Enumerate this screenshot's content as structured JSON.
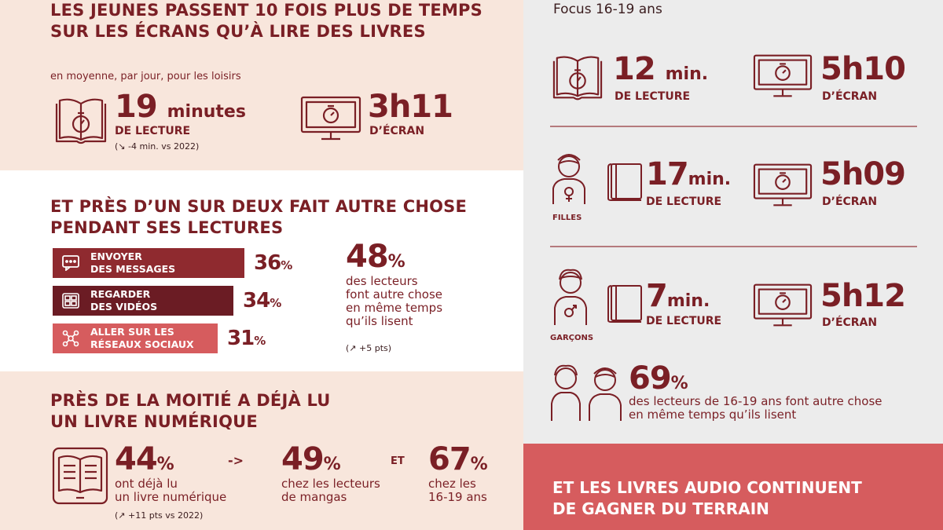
{
  "panel1": {
    "title_line1": "LES JEUNES PASSENT 10 FOIS PLUS DE TEMPS",
    "title_line2": "SUR LES ÉCRANS QU’À LIRE DES LIVRES",
    "subtitle": "en moyenne, par jour, pour les loisirs",
    "reading": {
      "value": "19",
      "unit": "minutes",
      "label": "DE LECTURE",
      "note_arrow": "↘",
      "note": "-4 min. vs 2022"
    },
    "screen": {
      "value": "3h11",
      "label": "D’ÉCRAN"
    }
  },
  "panel2": {
    "title_line1": "ET PRÈS D’UN SUR DEUX FAIT AUTRE CHOSE",
    "title_line2": "PENDANT SES LECTURES",
    "bars": [
      {
        "line1": "ENVOYER",
        "line2": "DES MESSAGES",
        "value": 36,
        "value_text": "36",
        "pct": "%",
        "color": "#8f2a2f",
        "icon": "chat-icon"
      },
      {
        "line1": "REGARDER",
        "line2": "DES VIDÉOS",
        "value": 34,
        "value_text": "34",
        "pct": "%",
        "color": "#6b1c24",
        "icon": "video-icon"
      },
      {
        "line1": "ALLER SUR LES",
        "line2": "RÉSEAUX SOCIAUX",
        "value": 31,
        "value_text": "31",
        "pct": "%",
        "color": "#d65c5e",
        "icon": "social-network-icon"
      }
    ],
    "stat": {
      "value": "48",
      "pct": "%",
      "line1": "des lecteurs",
      "line2": "font autre chose",
      "line3": "en même temps",
      "line4": "qu’ils lisent",
      "note_arrow": "↗",
      "note": "+5 pts"
    }
  },
  "panel3": {
    "title_line1": "PRÈS DE LA MOITIÉ A DÉJÀ LU",
    "title_line2": "UN LIVRE NUMÉRIQUE",
    "stat1": {
      "value": "44",
      "pct": "%",
      "line1": "ont déjà lu",
      "line2": "un livre numérique",
      "note_arrow": "↗",
      "note": "+11 pts vs 2022"
    },
    "arrow": "->",
    "stat2": {
      "value": "49",
      "pct": "%",
      "line1": "chez les lecteurs",
      "line2": "de mangas"
    },
    "conj": "ET",
    "stat3": {
      "value": "67",
      "pct": "%",
      "line1": "chez les",
      "line2": "16-19 ans"
    }
  },
  "focus": {
    "title": "Focus 16-19 ans",
    "rows": [
      {
        "reading_value": "12",
        "reading_unit": "min.",
        "reading_label": "DE LECTURE",
        "screen_value": "5h10",
        "screen_label": "D’ÉCRAN"
      },
      {
        "group": "FILLES",
        "reading_value": "17",
        "reading_unit": "min.",
        "reading_label": "DE LECTURE",
        "screen_value": "5h09",
        "screen_label": "D’ÉCRAN"
      },
      {
        "group": "GARÇONS",
        "reading_value": "7",
        "reading_unit": "min.",
        "reading_label": "DE LECTURE",
        "screen_value": "5h12",
        "screen_label": "D’ÉCRAN"
      }
    ],
    "stat": {
      "value": "69",
      "pct": "%",
      "line1": "des lecteurs de 16-19 ans font autre chose",
      "line2": "en même temps qu’ils lisent"
    }
  },
  "audio_banner": {
    "line1": "ET LES LIVRES AUDIO CONTINUENT",
    "line2": "DE GAGNER DU TERRAIN"
  },
  "colors": {
    "peach": "#f8e6dc",
    "grey": "#ececec",
    "maroon": "#7a1f25",
    "coral": "#d65c5e"
  }
}
